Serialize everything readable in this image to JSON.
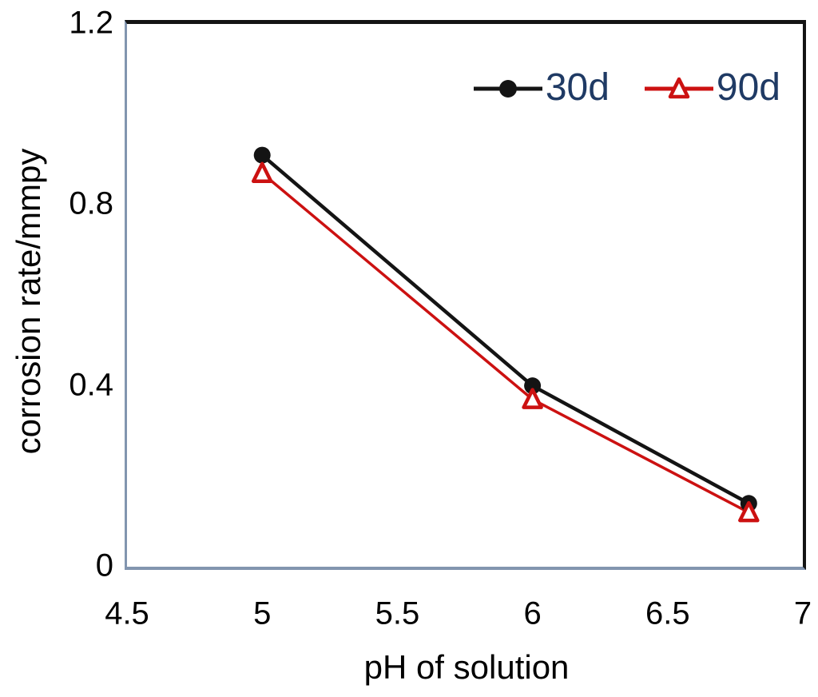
{
  "chart_data": {
    "type": "line",
    "title": "",
    "xlabel": "pH of solution",
    "ylabel": "corrosion rate/mmpy",
    "xlim": [
      4.5,
      7.0
    ],
    "ylim": [
      0,
      1.2
    ],
    "x_ticks": [
      4.5,
      5,
      5.5,
      6,
      6.5,
      7
    ],
    "x_tick_labels": [
      "4.5",
      "5",
      "5.5",
      "6",
      "6.5",
      "7"
    ],
    "y_ticks": [
      0,
      0.4,
      0.8,
      1.2
    ],
    "y_tick_labels": [
      "0",
      "0.4",
      "0.8",
      "1.2"
    ],
    "grid": false,
    "legend_position": "top-right-inside",
    "x": [
      5.0,
      6.0,
      6.8
    ],
    "series": [
      {
        "name": "30d",
        "values": [
          0.91,
          0.4,
          0.14
        ],
        "color": "#141414",
        "marker": "filled-circle-icon"
      },
      {
        "name": "90d",
        "values": [
          0.87,
          0.37,
          0.12
        ],
        "color": "#cc1111",
        "marker": "open-triangle-icon"
      }
    ]
  },
  "colors": {
    "legend_text": "#1f3a64",
    "axis_line": "#8295af",
    "plot_border": "#141414",
    "tick_text": "#000000",
    "background": "#ffffff"
  }
}
